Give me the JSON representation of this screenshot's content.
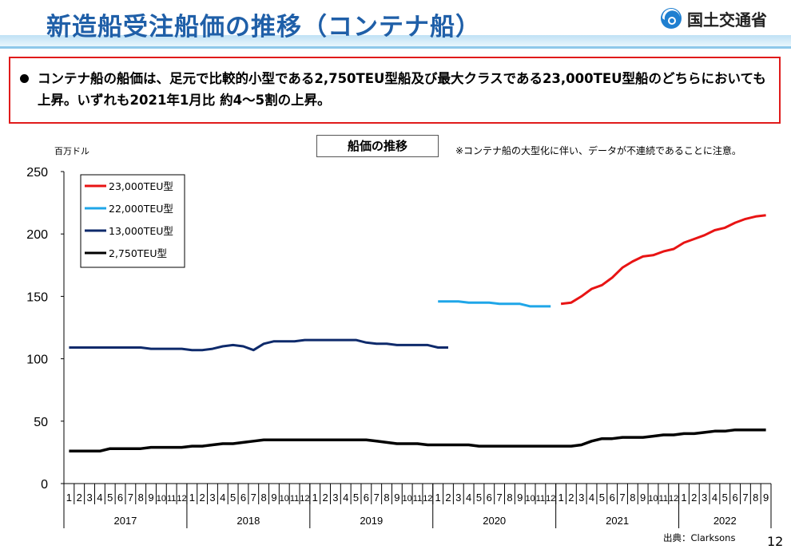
{
  "header": {
    "title": "新造船受注船価の推移（コンテナ船）",
    "logo_text": "国土交通省"
  },
  "summary": {
    "text": "コンテナ船の船価は、足元で比較的小型である2,750TEU型船及び最大クラスである23,000TEU型船のどちらにおいても上昇。いずれも2021年1月比 約4～5割の上昇。"
  },
  "chart_title": "船価の推移",
  "note": "※コンテナ船の大型化に伴い、データが不連続であることに注意。",
  "source": "出典：Clarksons",
  "page_number": "12",
  "colors": {
    "title": "#1f5fa8",
    "box_border": "#e01b1b"
  },
  "chart_data": {
    "type": "line",
    "ylabel": "百万ドル",
    "ylim": [
      0,
      250
    ],
    "yticks": [
      0,
      50,
      100,
      150,
      200,
      250
    ],
    "x_month_labels": [
      "1",
      "2",
      "3",
      "4",
      "5",
      "6",
      "7",
      "8",
      "9",
      "10",
      "11",
      "12",
      "1",
      "2",
      "3",
      "4",
      "5",
      "6",
      "7",
      "8",
      "9",
      "10",
      "11",
      "12",
      "1",
      "2",
      "3",
      "4",
      "5",
      "6",
      "7",
      "8",
      "9",
      "10",
      "11",
      "12",
      "1",
      "2",
      "3",
      "4",
      "5",
      "6",
      "7",
      "8",
      "9",
      "10",
      "11",
      "12",
      "1",
      "2",
      "3",
      "4",
      "5",
      "6",
      "7",
      "8",
      "9",
      "10",
      "11",
      "12",
      "1",
      "2",
      "3",
      "4",
      "5",
      "6",
      "7",
      "8",
      "9"
    ],
    "years": [
      {
        "label": "2017",
        "start_index": 0,
        "months": 12
      },
      {
        "label": "2018",
        "start_index": 12,
        "months": 12
      },
      {
        "label": "2019",
        "start_index": 24,
        "months": 12
      },
      {
        "label": "2020",
        "start_index": 36,
        "months": 12
      },
      {
        "label": "2021",
        "start_index": 48,
        "months": 12
      },
      {
        "label": "2022",
        "start_index": 60,
        "months": 9
      }
    ],
    "series": [
      {
        "name": "23,000TEU型",
        "color": "#e81414",
        "start_index": 48,
        "values": [
          144,
          145,
          150,
          156,
          159,
          165,
          173,
          178,
          182,
          183,
          186,
          188,
          193,
          196,
          199,
          203,
          205,
          209,
          212,
          214,
          215
        ]
      },
      {
        "name": "22,000TEU型",
        "color": "#1fa6e8",
        "start_index": 36,
        "values": [
          146,
          146,
          146,
          145,
          145,
          145,
          144,
          144,
          144,
          142,
          142,
          142
        ]
      },
      {
        "name": "13,000TEU型",
        "color": "#0e2a6b",
        "start_index": 0,
        "values": [
          109,
          109,
          109,
          109,
          109,
          109,
          109,
          109,
          108,
          108,
          108,
          108,
          107,
          107,
          108,
          110,
          111,
          110,
          107,
          112,
          114,
          114,
          114,
          115,
          115,
          115,
          115,
          115,
          115,
          113,
          112,
          112,
          111,
          111,
          111,
          111,
          109,
          109
        ]
      },
      {
        "name": "2,750TEU型",
        "color": "#000000",
        "start_index": 0,
        "values": [
          26,
          26,
          26,
          26,
          28,
          28,
          28,
          28,
          29,
          29,
          29,
          29,
          30,
          30,
          31,
          32,
          32,
          33,
          34,
          35,
          35,
          35,
          35,
          35,
          35,
          35,
          35,
          35,
          35,
          35,
          34,
          33,
          32,
          32,
          32,
          31,
          31,
          31,
          31,
          31,
          30,
          30,
          30,
          30,
          30,
          30,
          30,
          30,
          30,
          30,
          31,
          34,
          36,
          36,
          37,
          37,
          37,
          38,
          39,
          39,
          40,
          40,
          41,
          42,
          42,
          43,
          43,
          43,
          43
        ]
      }
    ]
  }
}
